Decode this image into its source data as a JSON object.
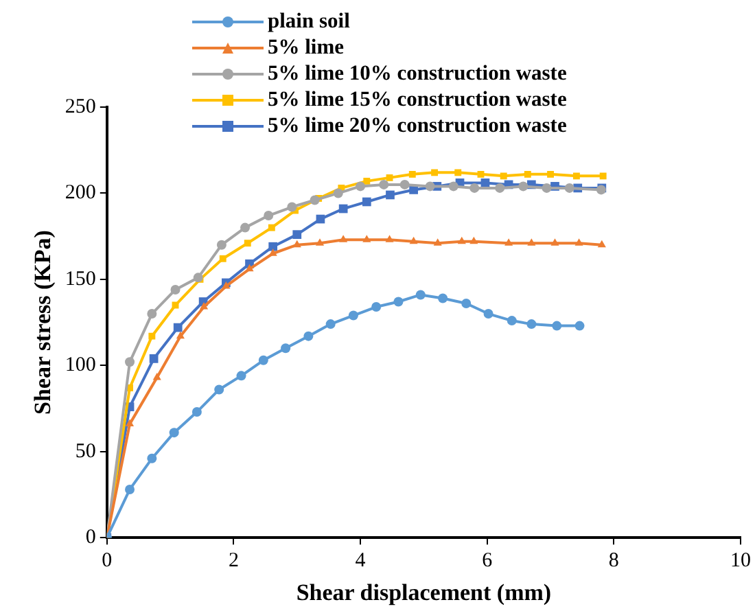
{
  "chart_data": {
    "type": "line",
    "xlabel": "Shear displacement (mm)",
    "ylabel": "Shear stress (KPa)",
    "xlim": [
      0,
      10
    ],
    "xticks": [
      0,
      2,
      4,
      6,
      8,
      10
    ],
    "ylim": [
      0,
      250
    ],
    "yticks": [
      0,
      50,
      100,
      150,
      200,
      250
    ],
    "grid": false,
    "legend": "top",
    "line_style": "solid",
    "series": [
      {
        "name": "plain soil",
        "color": "#5b9bd5",
        "marker": "circle",
        "x": [
          0,
          0.36,
          0.71,
          1.06,
          1.42,
          1.77,
          2.12,
          2.47,
          2.82,
          3.18,
          3.53,
          3.89,
          4.25,
          4.6,
          4.95,
          5.3,
          5.67,
          6.02,
          6.39,
          6.7,
          7.1,
          7.46
        ],
        "values": [
          0,
          28,
          46,
          61,
          73,
          86,
          94,
          103,
          110,
          117,
          124,
          129,
          134,
          137,
          141,
          139,
          136,
          130,
          126,
          124,
          123,
          123
        ]
      },
      {
        "name": "5% lime",
        "color": "#ed7d31",
        "marker": "triangle",
        "x": [
          0,
          0.36,
          0.79,
          1.16,
          1.53,
          1.88,
          2.25,
          2.62,
          3.0,
          3.36,
          3.73,
          4.1,
          4.46,
          4.84,
          5.22,
          5.6,
          5.79,
          6.34,
          6.7,
          7.07,
          7.45,
          7.81
        ],
        "values": [
          0,
          66,
          93,
          117,
          134,
          146,
          156,
          165,
          170,
          171,
          173,
          173,
          173,
          172,
          171,
          172,
          172,
          171,
          171,
          171,
          171,
          170
        ]
      },
      {
        "name": "5% lime 10% construction waste",
        "color": "#a5a5a5",
        "marker": "circle",
        "x": [
          0,
          0.36,
          0.71,
          1.08,
          1.44,
          1.81,
          2.18,
          2.55,
          2.92,
          3.28,
          3.65,
          4.0,
          4.37,
          4.7,
          5.1,
          5.47,
          5.8,
          6.2,
          6.57,
          6.94,
          7.3,
          7.8
        ],
        "values": [
          0,
          102,
          130,
          144,
          151,
          170,
          180,
          187,
          192,
          196,
          200,
          204,
          205,
          205,
          204,
          204,
          203,
          203,
          204,
          203,
          203,
          202
        ]
      },
      {
        "name": "5% lime 15% construction waste",
        "color": "#ffc000",
        "marker": "square",
        "x": [
          0,
          0.36,
          0.71,
          1.08,
          1.47,
          1.83,
          2.22,
          2.6,
          2.97,
          3.34,
          3.7,
          4.1,
          4.46,
          4.82,
          5.17,
          5.54,
          5.9,
          6.26,
          6.64,
          7.0,
          7.41,
          7.83
        ],
        "values": [
          0,
          87,
          117,
          135,
          150,
          162,
          171,
          180,
          190,
          197,
          203,
          207,
          209,
          211,
          212,
          212,
          211,
          210,
          211,
          211,
          210,
          210
        ]
      },
      {
        "name": "5% lime 20% construction waste",
        "color": "#4472c4",
        "marker": "square",
        "x": [
          0,
          0.36,
          0.74,
          1.12,
          1.52,
          1.88,
          2.25,
          2.62,
          3.0,
          3.37,
          3.73,
          4.1,
          4.47,
          4.84,
          5.21,
          5.57,
          5.97,
          6.34,
          6.7,
          7.07,
          7.43,
          7.81
        ],
        "values": [
          0,
          76,
          104,
          122,
          137,
          148,
          159,
          169,
          176,
          185,
          191,
          195,
          199,
          202,
          204,
          206,
          206,
          205,
          205,
          204,
          203,
          203
        ]
      }
    ]
  }
}
